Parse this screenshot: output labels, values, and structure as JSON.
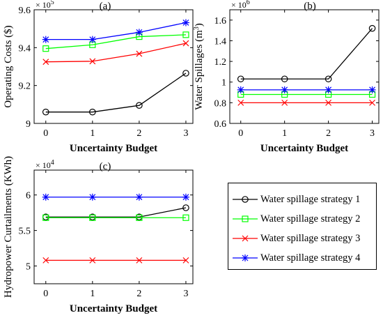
{
  "colors": {
    "strategy1": "#000000",
    "strategy2": "#00ff00",
    "strategy3": "#ff0000",
    "strategy4": "#0000ff"
  },
  "legend": {
    "entries": [
      {
        "label": "Water spillage strategy 1",
        "color": "#000000",
        "marker": "circle"
      },
      {
        "label": "Water spillage strategy 2",
        "color": "#00ff00",
        "marker": "square"
      },
      {
        "label": "Water spillage strategy 3",
        "color": "#ff0000",
        "marker": "x"
      },
      {
        "label": "Water spillage strategy 4",
        "color": "#0000ff",
        "marker": "star"
      }
    ]
  },
  "chart_data": [
    {
      "type": "line",
      "panel": "a",
      "title": "(a)",
      "xlabel": "Uncertainty Budget",
      "ylabel": "Operating Costs ($)",
      "exponent": "× 10",
      "exponent_power": "5",
      "x": [
        0,
        1,
        2,
        3
      ],
      "xlim": [
        -0.25,
        3.15
      ],
      "ylim": [
        9.0,
        9.6
      ],
      "yticks": [
        9,
        9.2,
        9.4,
        9.6
      ],
      "ytick_labels": [
        "9",
        "9.2",
        "9.4",
        "9.6"
      ],
      "xtick_labels": [
        "0",
        "1",
        "2",
        "3"
      ],
      "series": [
        {
          "name": "Water spillage strategy 1",
          "values": [
            9.06,
            9.06,
            9.095,
            9.265
          ]
        },
        {
          "name": "Water spillage strategy 2",
          "values": [
            9.395,
            9.415,
            9.458,
            9.468
          ]
        },
        {
          "name": "Water spillage strategy 3",
          "values": [
            9.325,
            9.328,
            9.368,
            9.423
          ]
        },
        {
          "name": "Water spillage strategy 4",
          "values": [
            9.443,
            9.443,
            9.481,
            9.532
          ]
        }
      ]
    },
    {
      "type": "line",
      "panel": "b",
      "title": "(b)",
      "xlabel": "Uncertainty Budget",
      "ylabel": "Water Spillages (m",
      "ylabel_sup": "3",
      "ylabel_end": ")",
      "exponent": "× 10",
      "exponent_power": "6",
      "x": [
        0,
        1,
        2,
        3
      ],
      "xlim": [
        -0.25,
        3.15
      ],
      "ylim": [
        0.6,
        1.7
      ],
      "yticks": [
        0.6,
        0.8,
        1.0,
        1.2,
        1.4,
        1.6
      ],
      "ytick_labels": [
        "0.6",
        "0.8",
        "1",
        "1.2",
        "1.4",
        "1.6"
      ],
      "xtick_labels": [
        "0",
        "1",
        "2",
        "3"
      ],
      "series": [
        {
          "name": "Water spillage strategy 1",
          "values": [
            1.03,
            1.03,
            1.03,
            1.52
          ]
        },
        {
          "name": "Water spillage strategy 2",
          "values": [
            0.88,
            0.88,
            0.88,
            0.88
          ]
        },
        {
          "name": "Water spillage strategy 3",
          "values": [
            0.8,
            0.8,
            0.8,
            0.8
          ]
        },
        {
          "name": "Water spillage strategy 4",
          "values": [
            0.925,
            0.925,
            0.925,
            0.925
          ]
        }
      ]
    },
    {
      "type": "line",
      "panel": "c",
      "title": "(c)",
      "xlabel": "Uncertainty Budget",
      "ylabel": "Hydropower Curtailments (KWh)",
      "exponent": "× 10",
      "exponent_power": "4",
      "x": [
        0,
        1,
        2,
        3
      ],
      "xlim": [
        -0.25,
        3.15
      ],
      "ylim": [
        4.75,
        6.35
      ],
      "yticks": [
        5,
        5.5,
        6
      ],
      "ytick_labels": [
        "5",
        "5.5",
        "6"
      ],
      "xtick_labels": [
        "0",
        "1",
        "2",
        "3"
      ],
      "series": [
        {
          "name": "Water spillage strategy 1",
          "values": [
            5.69,
            5.69,
            5.69,
            5.82
          ]
        },
        {
          "name": "Water spillage strategy 2",
          "values": [
            5.68,
            5.68,
            5.68,
            5.68
          ]
        },
        {
          "name": "Water spillage strategy 3",
          "values": [
            5.08,
            5.08,
            5.08,
            5.08
          ]
        },
        {
          "name": "Water spillage strategy 4",
          "values": [
            5.97,
            5.97,
            5.97,
            5.97
          ]
        }
      ]
    }
  ]
}
